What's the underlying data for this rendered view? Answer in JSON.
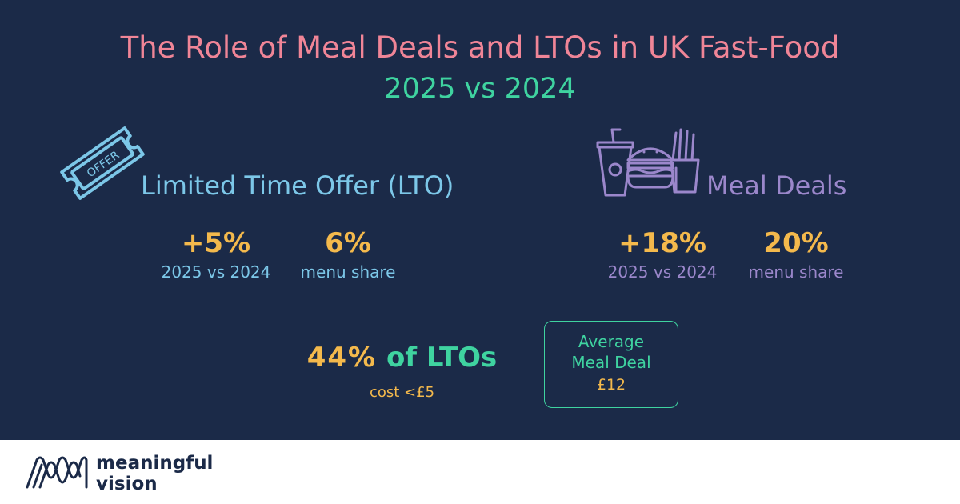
{
  "header": {
    "title": "The Role of Meal Deals and LTOs in UK Fast-Food",
    "subtitle": "2025 vs 2024"
  },
  "lto": {
    "icon": "offer-ticket-icon",
    "icon_text": "OFFER",
    "heading": "Limited Time Offer (LTO)",
    "growth_value": "+5%",
    "growth_label": "2025 vs 2024",
    "share_value": "6%",
    "share_label": "menu share",
    "cost_percent": "44%",
    "cost_of": "of LTOs",
    "cost_label": "cost <£5"
  },
  "meal": {
    "icon": "meal-combo-icon",
    "heading": "Meal Deals",
    "growth_value": "+18%",
    "growth_label": "2025 vs 2024",
    "share_value": "20%",
    "share_label": "menu share",
    "average_label_1": "Average",
    "average_label_2": "Meal Deal",
    "average_value": "£12"
  },
  "footer": {
    "brand_line1": "meaningful",
    "brand_line2": "vision",
    "logo_icon": "meaningful-vision-logo"
  },
  "colors": {
    "background": "#1b2a48",
    "title": "#f08597",
    "accent_green": "#3fd3a0",
    "stat_yellow": "#f4b94c",
    "lto_blue": "#7cc7e8",
    "meal_purple": "#9b87cb",
    "footer_bg": "#ffffff"
  }
}
